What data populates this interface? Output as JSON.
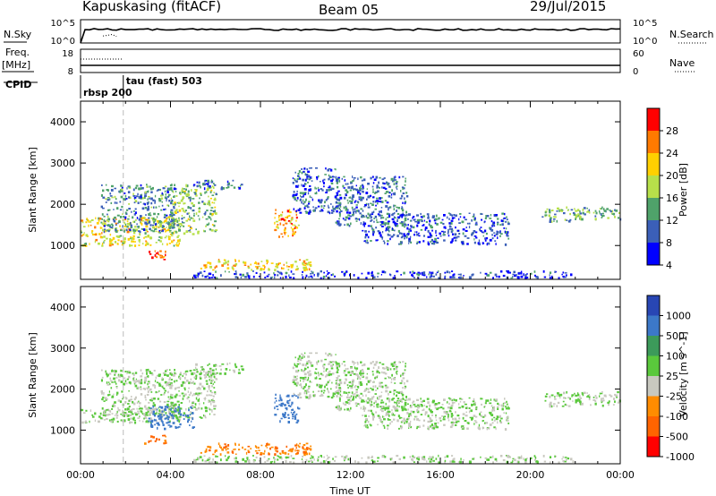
{
  "header": {
    "station": "Kapuskasing (fitACF)",
    "beam": "Beam 05",
    "date": "29/Jul/2015"
  },
  "status_panel": {
    "left_labels": {
      "nsky": "N.Sky",
      "freq": "Freq.",
      "freq_unit": "[MHz]",
      "cpid": "CPID"
    },
    "right_labels": {
      "nsearch": "N.Search",
      "nave": "Nave"
    },
    "noise_left_ticks": [
      "10^5",
      "10^0"
    ],
    "noise_right_ticks": [
      "10^5",
      "10^0"
    ],
    "freq_left_ticks": [
      "18",
      "8"
    ],
    "freq_right_ticks": [
      "60",
      "0"
    ],
    "cpid_annotations": [
      {
        "text": "rbsp 200",
        "hour": 0.0
      },
      {
        "text": "tau (fast) 503",
        "hour": 1.9
      }
    ]
  },
  "colorbars": {
    "power": {
      "label": "Power [dB]",
      "ticks": [
        "28",
        "24",
        "20",
        "16",
        "12",
        "8",
        "4"
      ],
      "colors": [
        "#ff0000",
        "#ff7a00",
        "#ffd000",
        "#b7e04a",
        "#4fa26a",
        "#3b5fb8",
        "#0000ff"
      ]
    },
    "velocity": {
      "label": "Velocity [m s^-1]",
      "ticks": [
        "1000",
        "500",
        "100",
        "25",
        "-25",
        "-100",
        "-500",
        "-1000"
      ],
      "colors": [
        "#2846b4",
        "#3c78c8",
        "#3c9a5a",
        "#5ac83c",
        "#c8c8bf",
        "#ff8c00",
        "#ff6400",
        "#ff0000"
      ]
    }
  },
  "chart_data": [
    {
      "type": "heatmap",
      "title": "",
      "ylabel": "Slant Range [km]",
      "xlabel": "",
      "ylim": [
        180,
        4500
      ],
      "xlim": [
        0,
        24
      ],
      "yticks": [
        "4000",
        "3000",
        "2000",
        "1000"
      ],
      "quantity": "Power [dB]",
      "regions": [
        {
          "name": "early-band",
          "t0": 0.0,
          "t1": 4.4,
          "r0": 1000,
          "r1": 1700,
          "level": 18
        },
        {
          "name": "early-arc",
          "t0": 0.9,
          "t1": 4.2,
          "r0": 1350,
          "r1": 2500,
          "level": 10
        },
        {
          "name": "ascending-arc",
          "t0": 3.8,
          "t1": 6.0,
          "r0": 1300,
          "r1": 2500,
          "level": 14
        },
        {
          "name": "high-band",
          "t0": 5.0,
          "t1": 7.2,
          "r0": 2400,
          "r1": 2600,
          "level": 9
        },
        {
          "name": "blob-03h",
          "t0": 2.8,
          "t1": 3.8,
          "r0": 680,
          "r1": 900,
          "level": 26
        },
        {
          "name": "blob-09h",
          "t0": 8.6,
          "t1": 9.7,
          "r0": 1200,
          "r1": 1900,
          "level": 22
        },
        {
          "name": "near-range-0608",
          "t0": 5.3,
          "t1": 10.2,
          "r0": 420,
          "r1": 680,
          "level": 20
        },
        {
          "name": "peak-11h",
          "t0": 9.4,
          "t1": 11.5,
          "r0": 1800,
          "r1": 2900,
          "level": 8
        },
        {
          "name": "descending-arc",
          "t0": 11.3,
          "t1": 14.5,
          "r0": 1500,
          "r1": 2700,
          "level": 9
        },
        {
          "name": "late-band",
          "t0": 12.5,
          "t1": 19.0,
          "r0": 1050,
          "r1": 1800,
          "level": 7
        },
        {
          "name": "evening-band",
          "t0": 20.5,
          "t1": 24.0,
          "r0": 1600,
          "r1": 1950,
          "level": 13
        },
        {
          "name": "near-range",
          "t0": 5.0,
          "t1": 22.0,
          "r0": 230,
          "r1": 400,
          "level": 6
        }
      ]
    },
    {
      "type": "heatmap",
      "title": "",
      "ylabel": "Slant Range [km]",
      "xlabel": "Time UT",
      "ylim": [
        180,
        4500
      ],
      "xlim": [
        0,
        24
      ],
      "yticks": [
        "4000",
        "3000",
        "2000",
        "1000"
      ],
      "xticks": [
        "00:00",
        "04:00",
        "08:00",
        "12:00",
        "16:00",
        "20:00",
        "00:00"
      ],
      "quantity": "Velocity [m s^-1]",
      "regions": [
        {
          "name": "early-band",
          "t0": 0.0,
          "t1": 4.4,
          "r0": 1200,
          "r1": 1550,
          "velocity": 0
        },
        {
          "name": "early-arc",
          "t0": 0.9,
          "t1": 4.2,
          "r0": 1350,
          "r1": 2500,
          "velocity": 0
        },
        {
          "name": "ascending-arc",
          "t0": 3.8,
          "t1": 6.0,
          "r0": 1300,
          "r1": 2500,
          "velocity": 0
        },
        {
          "name": "high-band",
          "t0": 5.0,
          "t1": 7.2,
          "r0": 2400,
          "r1": 2650,
          "velocity": 0
        },
        {
          "name": "blob-03h",
          "t0": 2.8,
          "t1": 3.8,
          "r0": 680,
          "r1": 900,
          "velocity": -150
        },
        {
          "name": "cell-04h",
          "t0": 3.0,
          "t1": 5.0,
          "r0": 1050,
          "r1": 1600,
          "velocity": 300
        },
        {
          "name": "blob-09h",
          "t0": 8.6,
          "t1": 9.7,
          "r0": 1200,
          "r1": 1900,
          "velocity": 200
        },
        {
          "name": "near-range-0608",
          "t0": 5.3,
          "t1": 10.2,
          "r0": 420,
          "r1": 700,
          "velocity": -80
        },
        {
          "name": "peak-11h",
          "t0": 9.4,
          "t1": 11.5,
          "r0": 1800,
          "r1": 2900,
          "velocity": 0
        },
        {
          "name": "descending-arc",
          "t0": 11.3,
          "t1": 14.5,
          "r0": 1500,
          "r1": 2700,
          "velocity": 0
        },
        {
          "name": "late-band",
          "t0": 12.5,
          "t1": 19.0,
          "r0": 1050,
          "r1": 1800,
          "velocity": 0
        },
        {
          "name": "evening-band",
          "t0": 20.5,
          "t1": 24.0,
          "r0": 1600,
          "r1": 1950,
          "velocity": 0
        },
        {
          "name": "near-range",
          "t0": 5.0,
          "t1": 22.0,
          "r0": 230,
          "r1": 400,
          "velocity": 0
        }
      ]
    }
  ]
}
